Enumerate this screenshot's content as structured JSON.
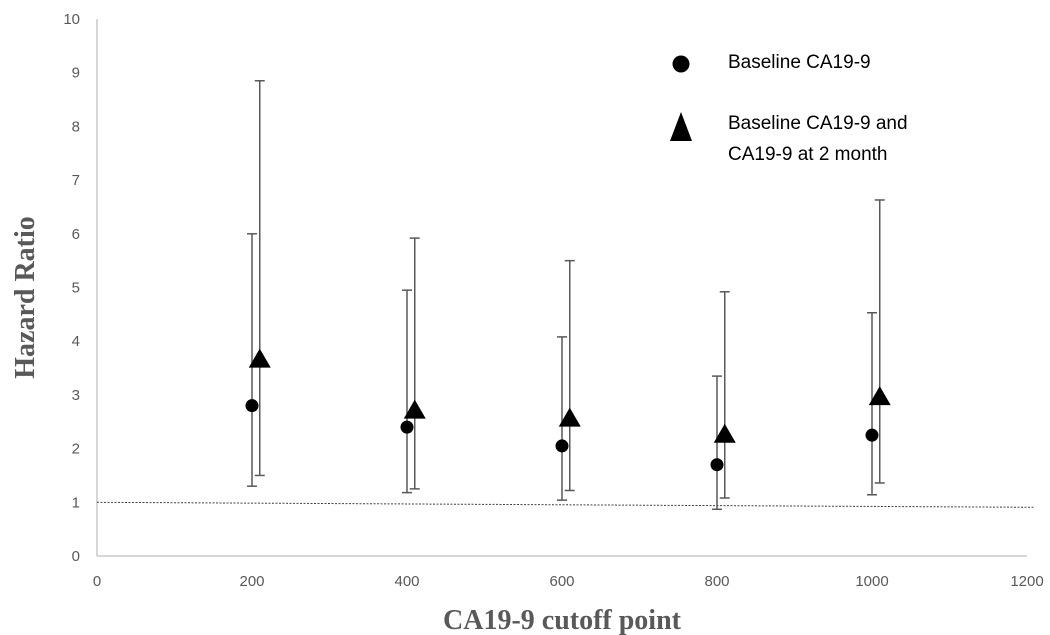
{
  "chart_data": {
    "type": "scatter",
    "xlabel": "CA19-9 cutoff point",
    "ylabel": "Hazard Ratio",
    "xlim": [
      0,
      1200
    ],
    "ylim": [
      0,
      10
    ],
    "x_ticks": [
      "0",
      "200",
      "400",
      "600",
      "800",
      "1000",
      "1200"
    ],
    "y_ticks": [
      "0",
      "1",
      "2",
      "3",
      "4",
      "5",
      "6",
      "7",
      "8",
      "9",
      "10"
    ],
    "reference_line": {
      "y": 1,
      "style": "dotted"
    },
    "grid": false,
    "legend": "top-right",
    "series": [
      {
        "name": "Baseline CA19-9",
        "marker": "circle",
        "color": "#000000",
        "points": [
          {
            "x": 200,
            "y": 2.8,
            "lower": 1.3,
            "upper": 6.0
          },
          {
            "x": 400,
            "y": 2.4,
            "lower": 1.18,
            "upper": 4.95
          },
          {
            "x": 600,
            "y": 2.05,
            "lower": 1.04,
            "upper": 4.08
          },
          {
            "x": 800,
            "y": 1.7,
            "lower": 0.87,
            "upper": 3.35
          },
          {
            "x": 1000,
            "y": 2.25,
            "lower": 1.14,
            "upper": 4.53
          }
        ]
      },
      {
        "name": "Baseline CA19-9  and CA19-9 at 2 month",
        "legend_lines": [
          "Baseline CA19-9  and",
          "CA19-9 at 2 month"
        ],
        "marker": "triangle",
        "color": "#000000",
        "points": [
          {
            "x": 210,
            "y": 3.65,
            "lower": 1.5,
            "upper": 8.85
          },
          {
            "x": 410,
            "y": 2.7,
            "lower": 1.25,
            "upper": 5.92
          },
          {
            "x": 610,
            "y": 2.55,
            "lower": 1.22,
            "upper": 5.5
          },
          {
            "x": 810,
            "y": 2.25,
            "lower": 1.08,
            "upper": 4.92
          },
          {
            "x": 1010,
            "y": 2.95,
            "lower": 1.36,
            "upper": 6.63
          }
        ]
      }
    ]
  }
}
